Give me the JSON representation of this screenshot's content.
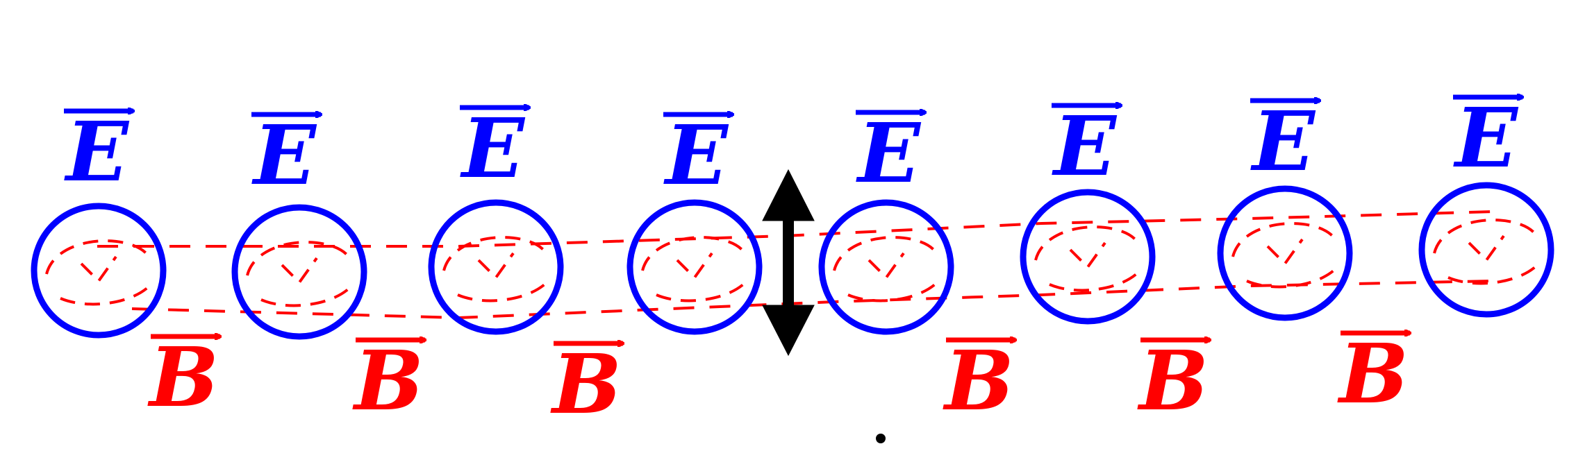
{
  "diagram": {
    "e_field_label": "E",
    "b_field_label": "B",
    "e_color": "#0000ff",
    "b_color": "#ff0000",
    "arrow_color": "#000000",
    "electric_field_loops": 8,
    "magnetic_field_labels": 6,
    "icons": [
      "vector-arrow-icon",
      "double-headed-arrow-icon"
    ]
  }
}
